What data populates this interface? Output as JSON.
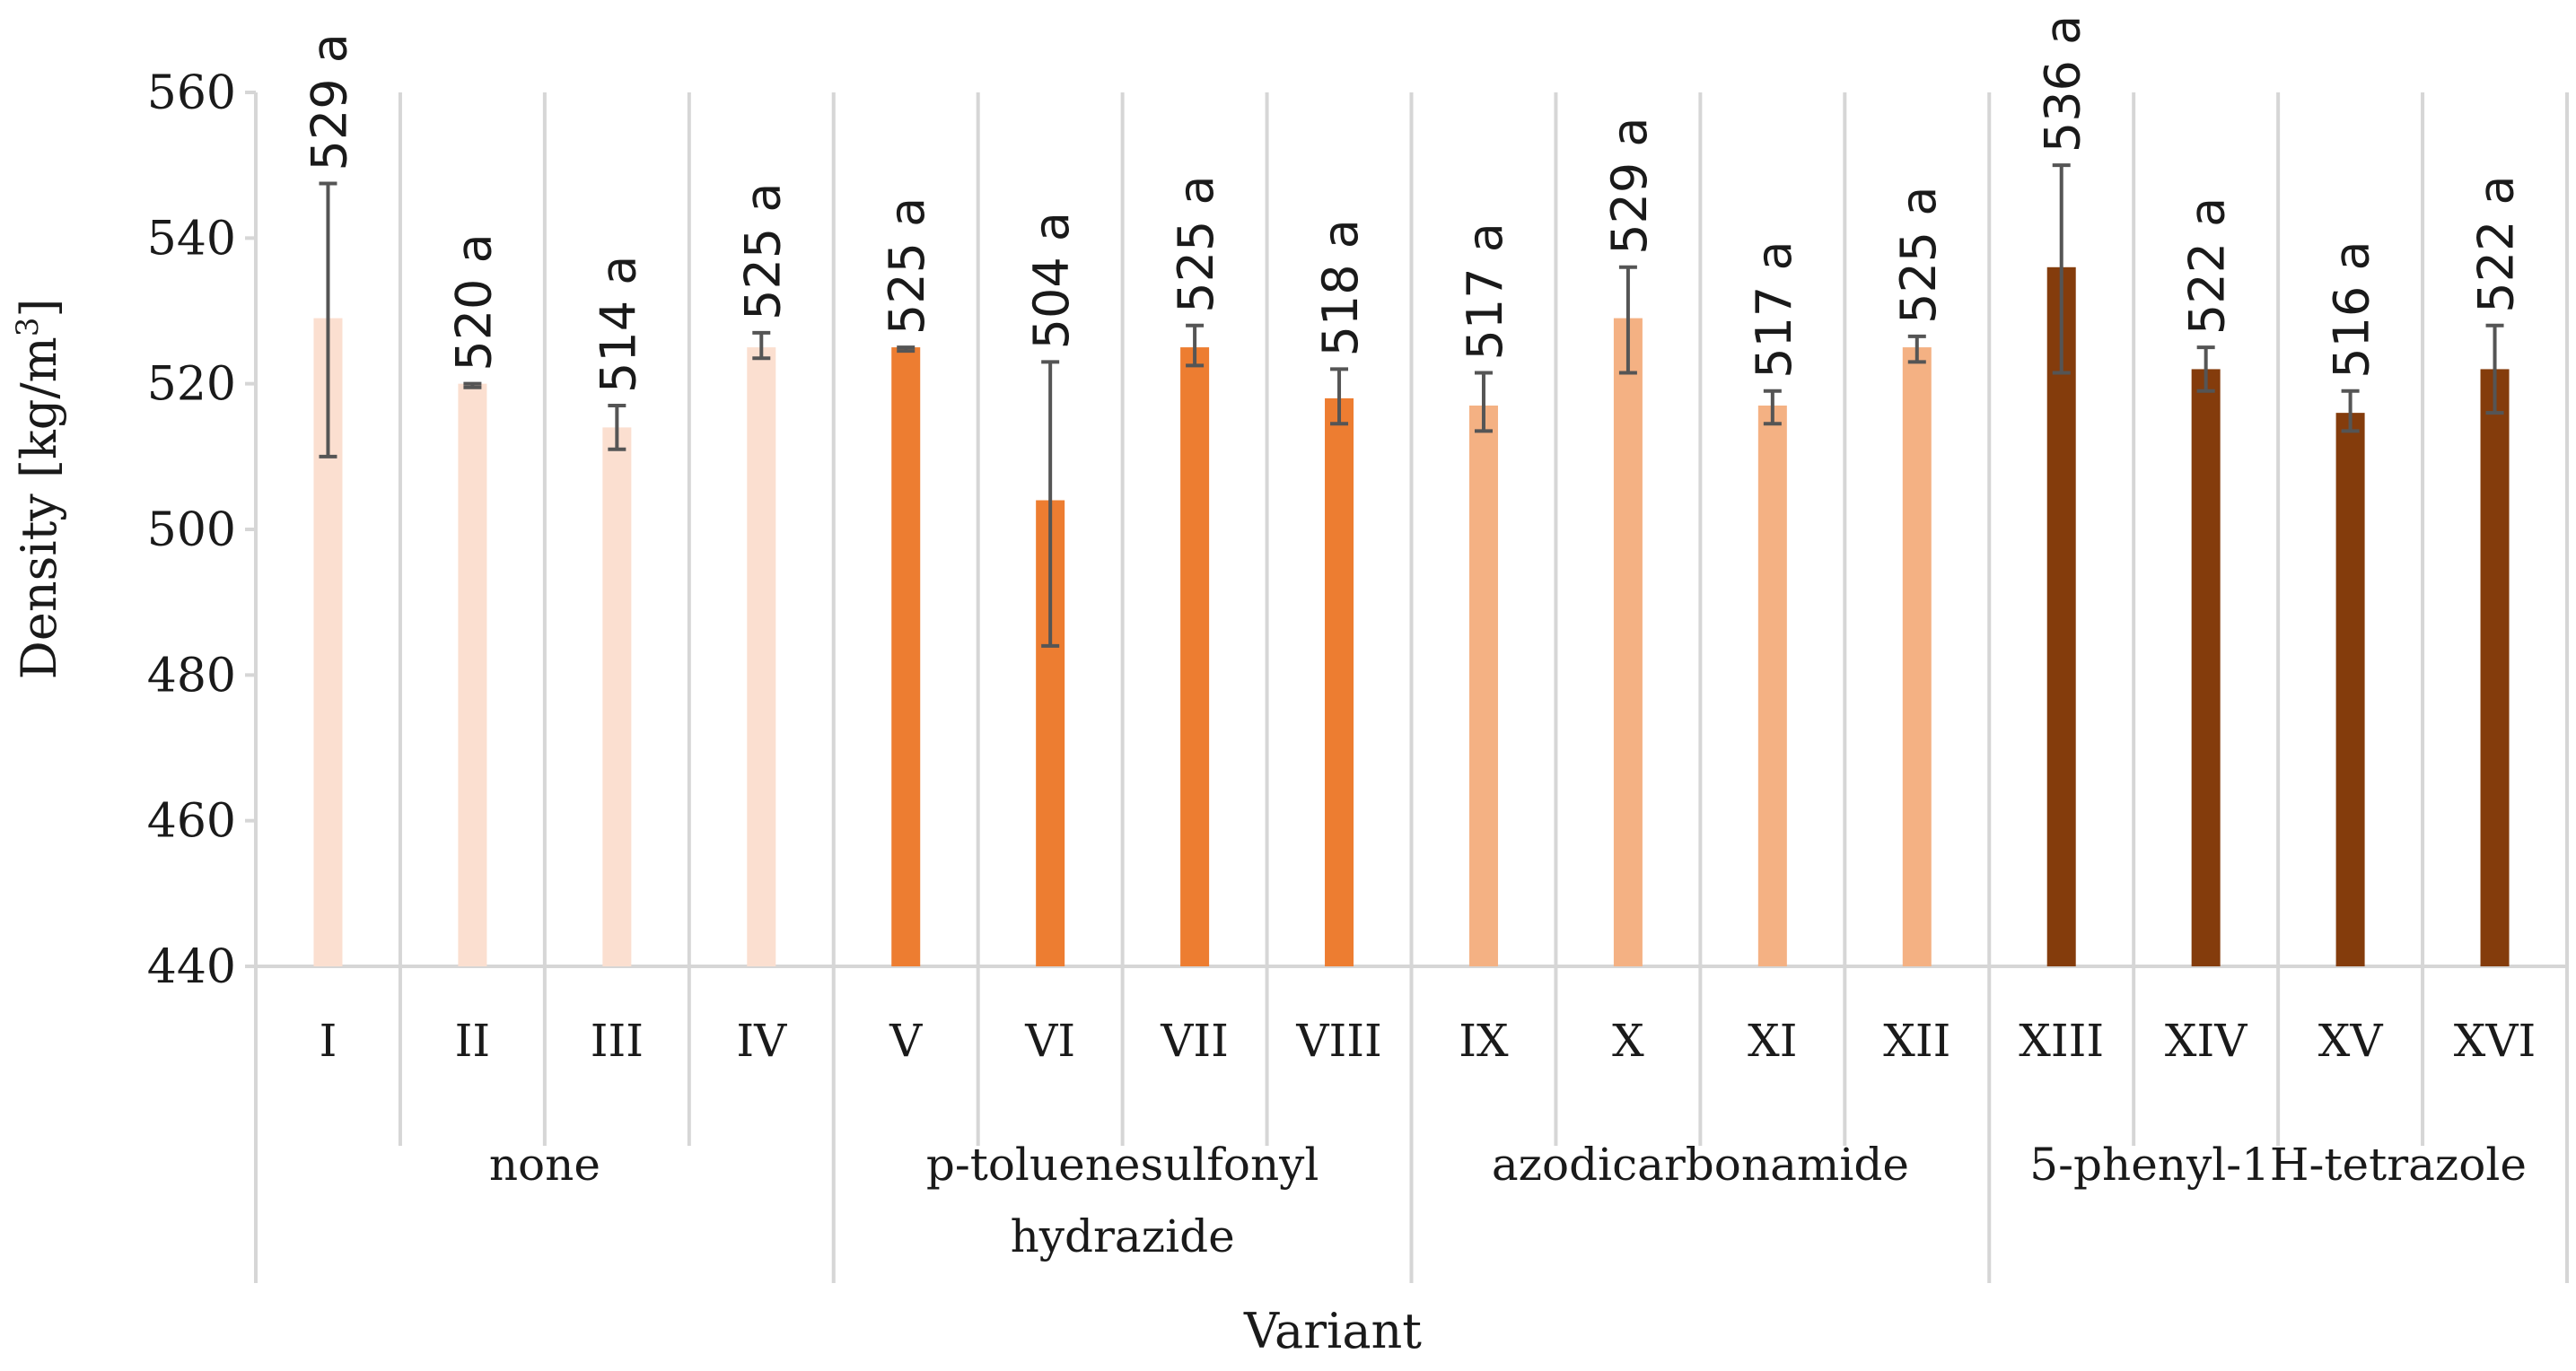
{
  "chart_data": {
    "type": "bar",
    "ylabel_main": "Density [kg/m",
    "ylabel_sup": "3",
    "ylabel_close": "]",
    "xlabel": "Variant",
    "ylim": [
      440,
      560
    ],
    "yticks": [
      440,
      460,
      480,
      500,
      520,
      540,
      560
    ],
    "categories": [
      "I",
      "II",
      "III",
      "IV",
      "V",
      "VI",
      "VII",
      "VIII",
      "IX",
      "X",
      "XI",
      "XII",
      "XIII",
      "XIV",
      "XV",
      "XVI"
    ],
    "values": [
      529,
      520,
      514,
      525,
      525,
      504,
      525,
      518,
      517,
      529,
      517,
      525,
      536,
      522,
      516,
      522
    ],
    "error_low": [
      510,
      519.5,
      511,
      523.5,
      524.5,
      484,
      522.5,
      514.5,
      513.5,
      521.5,
      514.5,
      523,
      521.5,
      519,
      513.5,
      516
    ],
    "error_high": [
      547.5,
      520,
      517,
      527,
      525,
      523,
      528,
      522,
      521.5,
      536,
      519,
      526.5,
      550,
      525,
      519,
      528
    ],
    "data_labels": [
      "529 a",
      "520 a",
      "514 a",
      "525 a",
      "525 a",
      "504 a",
      "525 a",
      "518 a",
      "517 a",
      "529 a",
      "517 a",
      "525 a",
      "536 a",
      "522 a",
      "516 a",
      "522 a"
    ],
    "groups": [
      {
        "lines": [
          "none"
        ],
        "start": 0,
        "count": 4,
        "color": "#fbdfd0"
      },
      {
        "lines": [
          "p-toluenesulfonyl",
          "hydrazide"
        ],
        "start": 4,
        "count": 4,
        "color": "#ed7d31"
      },
      {
        "lines": [
          "azodicarbonamide"
        ],
        "start": 8,
        "count": 4,
        "color": "#f4b183"
      },
      {
        "lines": [
          "5-phenyl-1H-tetrazole"
        ],
        "start": 12,
        "count": 4,
        "color": "#843c0c"
      }
    ]
  }
}
